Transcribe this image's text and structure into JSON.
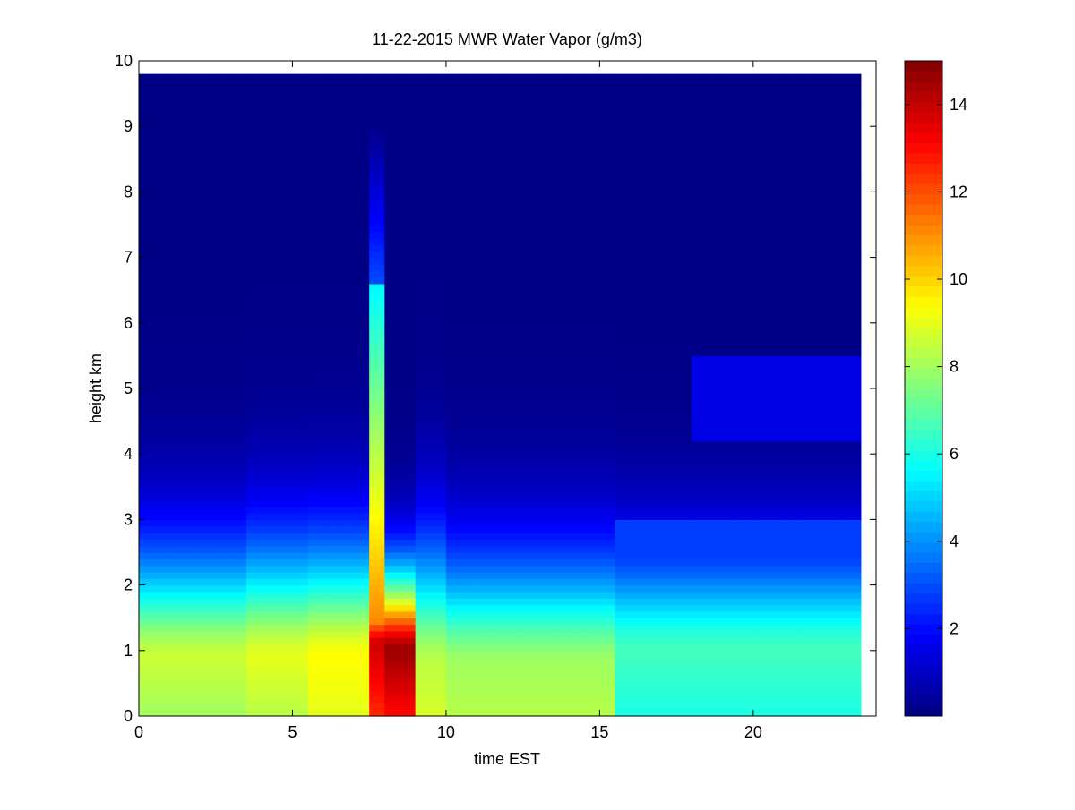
{
  "chart_data": {
    "type": "heatmap",
    "title": "11-22-2015 MWR Water Vapor (g/m3)",
    "xlabel": "time EST",
    "ylabel": "height km",
    "xlim": [
      0,
      24
    ],
    "ylim": [
      0,
      10
    ],
    "xticks": [
      "0",
      "5",
      "10",
      "15",
      "20"
    ],
    "yticks": [
      "0",
      "1",
      "2",
      "3",
      "4",
      "5",
      "6",
      "7",
      "8",
      "9",
      "10"
    ],
    "colorbar": {
      "colormap": "jet",
      "clim": [
        0,
        15
      ],
      "ticks": [
        "2",
        "4",
        "6",
        "8",
        "10",
        "12",
        "14"
      ]
    },
    "x": [
      0.25,
      0.75,
      1.25,
      1.75,
      2.25,
      2.75,
      3.25,
      3.75,
      4.25,
      4.75,
      5.25,
      5.75,
      6.25,
      6.75,
      7.25,
      7.75,
      8.25,
      8.75,
      9.25,
      9.75,
      10.25,
      10.75,
      11.25,
      11.75,
      12.25,
      12.75,
      13.25,
      13.75,
      14.25,
      14.75,
      15.25,
      15.75,
      16.25,
      16.75,
      17.25,
      17.75,
      18.25,
      18.75,
      19.25,
      19.75,
      20.25,
      20.75,
      21.25,
      21.75,
      22.25,
      22.75,
      23.25
    ],
    "heights": [
      0.05,
      0.15,
      0.25,
      0.35,
      0.45,
      0.55,
      0.65,
      0.75,
      0.85,
      0.95,
      1.05,
      1.15,
      1.25,
      1.35,
      1.45,
      1.55,
      1.65,
      1.75,
      1.85,
      1.95,
      2.05,
      2.15,
      2.25,
      2.35,
      2.45,
      2.55,
      2.65,
      2.75,
      2.85,
      2.95,
      3.05,
      3.15,
      3.25,
      3.35,
      3.45,
      3.55,
      3.65,
      3.75,
      3.85,
      3.95,
      4.05,
      4.15,
      4.25,
      4.35,
      4.45,
      4.55,
      4.65,
      4.75,
      4.85,
      4.95,
      5.05,
      5.15,
      5.25,
      5.35,
      5.45,
      5.55,
      5.65,
      5.75,
      5.85,
      5.95,
      6.05,
      6.15,
      6.25,
      6.35,
      6.45,
      6.55,
      6.65,
      6.75,
      6.85,
      6.95,
      7.05,
      7.15,
      7.25,
      7.35,
      7.45,
      7.55,
      7.65,
      7.75,
      7.85,
      7.95,
      8.05,
      8.15,
      8.25,
      8.35,
      8.45,
      8.55,
      8.65,
      8.75,
      8.85,
      8.95,
      9.05,
      9.15,
      9.25,
      9.35,
      9.45,
      9.55,
      9.65,
      9.75
    ],
    "profiles": [
      {
        "start": 0,
        "end": 7,
        "surface": 8.0,
        "peak": 8.6,
        "peak_height": 0.9,
        "decay": 0.62
      },
      {
        "start": 7,
        "end": 11,
        "surface": 8.3,
        "peak": 9.0,
        "peak_height": 0.9,
        "decay": 0.66
      },
      {
        "start": 11,
        "end": 15,
        "surface": 9.0,
        "peak": 9.4,
        "peak_height": 0.9,
        "decay": 0.66
      },
      {
        "start": 15,
        "end": 16,
        "surface": 12.5,
        "peak": 13.8,
        "peak_height": 1.1,
        "decay": 0.35,
        "plume_height": 6.6
      },
      {
        "start": 16,
        "end": 18,
        "surface": 13.0,
        "peak": 14.6,
        "peak_height": 1.0,
        "decay": 0.45
      },
      {
        "start": 18,
        "end": 20,
        "surface": 8.8,
        "peak": 8.4,
        "peak_height": 0.8,
        "decay": 0.7
      },
      {
        "start": 20,
        "end": 31,
        "surface": 8.3,
        "peak": 8.0,
        "peak_height": 0.8,
        "decay": 0.62
      },
      {
        "start": 31,
        "end": 47,
        "surface": 6.0,
        "peak": 6.6,
        "peak_height": 1.0,
        "decay": 0.58
      }
    ]
  }
}
